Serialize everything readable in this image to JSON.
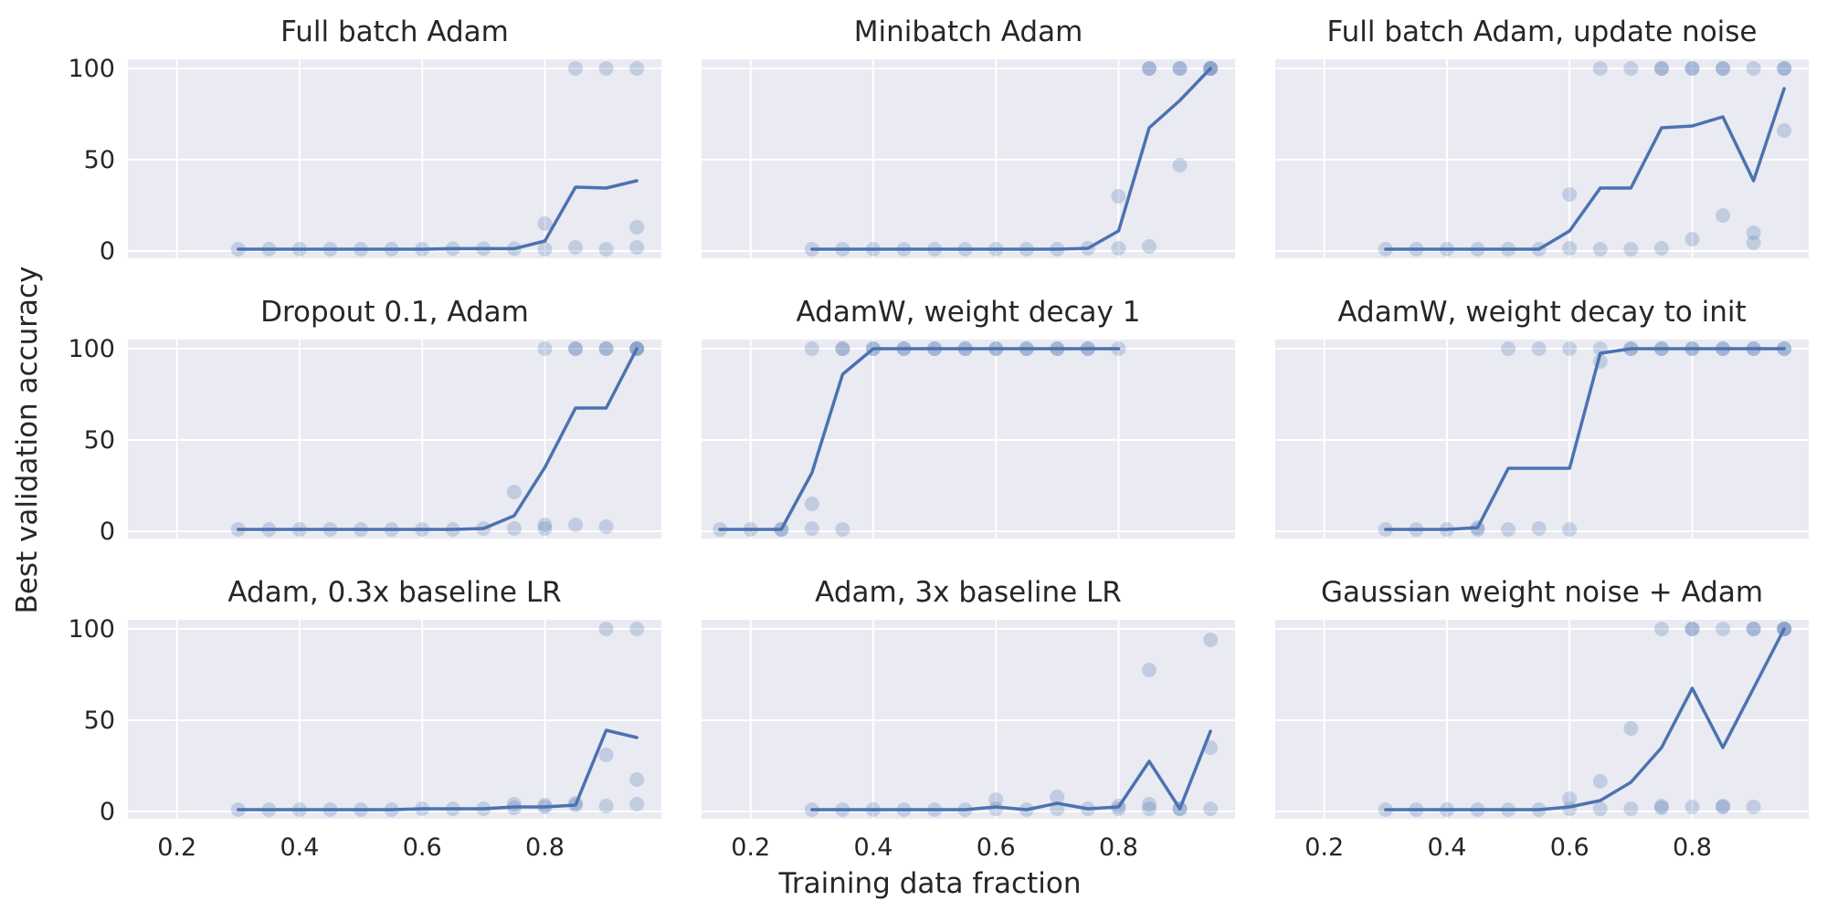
{
  "figure": {
    "xlabel": "Training data fraction",
    "ylabel": "Best validation accuracy",
    "colors": {
      "panel_bg": "#eaeaf2",
      "grid": "#ffffff",
      "series": "#4c72b0",
      "text": "#262626"
    }
  },
  "chart_data": [
    {
      "type": "scatter+line",
      "title": "Full batch Adam",
      "xlim": [
        0.12,
        0.99
      ],
      "ylim": [
        -4,
        105
      ],
      "xticks": [
        0.2,
        0.4,
        0.6,
        0.8
      ],
      "yticks": [
        0,
        50,
        100
      ],
      "show_xticklabels": false,
      "show_yticklabels": true,
      "mean_line": {
        "x": [
          0.3,
          0.35,
          0.4,
          0.45,
          0.5,
          0.55,
          0.6,
          0.65,
          0.7,
          0.75,
          0.8,
          0.85,
          0.9,
          0.95
        ],
        "y": [
          1,
          1,
          1,
          1,
          1,
          1,
          1,
          1.3,
          1.3,
          1.3,
          5.5,
          35,
          34.5,
          38.5
        ]
      },
      "runs": [
        [
          0.3,
          1
        ],
        [
          0.35,
          1
        ],
        [
          0.4,
          1
        ],
        [
          0.45,
          1
        ],
        [
          0.5,
          1
        ],
        [
          0.55,
          1
        ],
        [
          0.6,
          1
        ],
        [
          0.65,
          1.3
        ],
        [
          0.7,
          1.3
        ],
        [
          0.75,
          1.3
        ],
        [
          0.8,
          1
        ],
        [
          0.8,
          15
        ],
        [
          0.85,
          2
        ],
        [
          0.85,
          100
        ],
        [
          0.9,
          1
        ],
        [
          0.9,
          100
        ],
        [
          0.95,
          2
        ],
        [
          0.95,
          13
        ],
        [
          0.95,
          100
        ]
      ]
    },
    {
      "type": "scatter+line",
      "title": "Minibatch Adam",
      "xlim": [
        0.12,
        0.99
      ],
      "ylim": [
        -4,
        105
      ],
      "xticks": [
        0.2,
        0.4,
        0.6,
        0.8
      ],
      "yticks": [
        0,
        50,
        100
      ],
      "show_xticklabels": false,
      "show_yticklabels": false,
      "mean_line": {
        "x": [
          0.3,
          0.35,
          0.4,
          0.45,
          0.5,
          0.55,
          0.6,
          0.65,
          0.7,
          0.75,
          0.8,
          0.85,
          0.9,
          0.95
        ],
        "y": [
          1,
          1,
          1,
          1,
          1,
          1,
          1,
          1,
          1,
          1.5,
          11,
          67.5,
          82.5,
          100
        ]
      },
      "runs": [
        [
          0.3,
          1
        ],
        [
          0.35,
          1
        ],
        [
          0.4,
          1
        ],
        [
          0.45,
          1
        ],
        [
          0.5,
          1
        ],
        [
          0.55,
          1
        ],
        [
          0.6,
          1
        ],
        [
          0.65,
          1
        ],
        [
          0.7,
          1
        ],
        [
          0.75,
          1.5
        ],
        [
          0.8,
          1.5
        ],
        [
          0.8,
          30
        ],
        [
          0.85,
          2.5
        ],
        [
          0.85,
          100
        ],
        [
          0.85,
          100
        ],
        [
          0.9,
          47
        ],
        [
          0.9,
          100
        ],
        [
          0.9,
          100
        ],
        [
          0.95,
          100
        ],
        [
          0.95,
          100
        ],
        [
          0.95,
          100
        ]
      ]
    },
    {
      "type": "scatter+line",
      "title": "Full batch Adam, update noise",
      "xlim": [
        0.12,
        0.99
      ],
      "ylim": [
        -4,
        105
      ],
      "xticks": [
        0.2,
        0.4,
        0.6,
        0.8
      ],
      "yticks": [
        0,
        50,
        100
      ],
      "show_xticklabels": false,
      "show_yticklabels": false,
      "mean_line": {
        "x": [
          0.3,
          0.35,
          0.4,
          0.45,
          0.5,
          0.55,
          0.6,
          0.65,
          0.7,
          0.75,
          0.8,
          0.85,
          0.9,
          0.95
        ],
        "y": [
          1,
          1,
          1,
          1,
          1,
          1,
          11,
          34.5,
          34.5,
          67.5,
          68.5,
          73.5,
          38.5,
          89
        ]
      },
      "runs": [
        [
          0.3,
          1
        ],
        [
          0.35,
          1
        ],
        [
          0.4,
          1
        ],
        [
          0.45,
          1
        ],
        [
          0.5,
          1
        ],
        [
          0.55,
          1
        ],
        [
          0.6,
          1.5
        ],
        [
          0.6,
          31
        ],
        [
          0.65,
          1
        ],
        [
          0.65,
          100
        ],
        [
          0.7,
          1
        ],
        [
          0.7,
          100
        ],
        [
          0.75,
          1.5
        ],
        [
          0.75,
          100
        ],
        [
          0.75,
          100
        ],
        [
          0.8,
          6.5
        ],
        [
          0.8,
          100
        ],
        [
          0.8,
          100
        ],
        [
          0.85,
          19.5
        ],
        [
          0.85,
          100
        ],
        [
          0.85,
          100
        ],
        [
          0.9,
          4.5
        ],
        [
          0.9,
          10
        ],
        [
          0.9,
          100
        ],
        [
          0.95,
          66
        ],
        [
          0.95,
          100
        ],
        [
          0.95,
          100
        ]
      ]
    },
    {
      "type": "scatter+line",
      "title": "Dropout 0.1, Adam",
      "xlim": [
        0.12,
        0.99
      ],
      "ylim": [
        -4,
        105
      ],
      "xticks": [
        0.2,
        0.4,
        0.6,
        0.8
      ],
      "yticks": [
        0,
        50,
        100
      ],
      "show_xticklabels": false,
      "show_yticklabels": true,
      "mean_line": {
        "x": [
          0.3,
          0.35,
          0.4,
          0.45,
          0.5,
          0.55,
          0.6,
          0.65,
          0.7,
          0.75,
          0.8,
          0.85,
          0.9,
          0.95
        ],
        "y": [
          1,
          1,
          1,
          1,
          1,
          1,
          1,
          1,
          1.5,
          8.5,
          35,
          67.5,
          67.5,
          100
        ]
      },
      "runs": [
        [
          0.3,
          1
        ],
        [
          0.35,
          1
        ],
        [
          0.4,
          1
        ],
        [
          0.45,
          1
        ],
        [
          0.5,
          1
        ],
        [
          0.55,
          1
        ],
        [
          0.6,
          1
        ],
        [
          0.65,
          1
        ],
        [
          0.7,
          1.5
        ],
        [
          0.75,
          1.5
        ],
        [
          0.75,
          21.5
        ],
        [
          0.8,
          1.5
        ],
        [
          0.8,
          3.5
        ],
        [
          0.8,
          100
        ],
        [
          0.85,
          3.5
        ],
        [
          0.85,
          100
        ],
        [
          0.85,
          100
        ],
        [
          0.9,
          2.5
        ],
        [
          0.9,
          100
        ],
        [
          0.9,
          100
        ],
        [
          0.95,
          100
        ],
        [
          0.95,
          100
        ],
        [
          0.95,
          100
        ]
      ]
    },
    {
      "type": "scatter+line",
      "title": "AdamW, weight decay 1",
      "xlim": [
        0.12,
        0.99
      ],
      "ylim": [
        -4,
        105
      ],
      "xticks": [
        0.2,
        0.4,
        0.6,
        0.8
      ],
      "yticks": [
        0,
        50,
        100
      ],
      "show_xticklabels": false,
      "show_yticklabels": false,
      "mean_line": {
        "x": [
          0.15,
          0.2,
          0.25,
          0.3,
          0.35,
          0.4,
          0.45,
          0.5,
          0.55,
          0.6,
          0.65,
          0.7,
          0.75,
          0.8
        ],
        "y": [
          1,
          1,
          1,
          32,
          86,
          100,
          100,
          100,
          100,
          100,
          100,
          100,
          100,
          100
        ]
      },
      "runs": [
        [
          0.15,
          1
        ],
        [
          0.2,
          1
        ],
        [
          0.25,
          1
        ],
        [
          0.25,
          1
        ],
        [
          0.3,
          1.5
        ],
        [
          0.3,
          15
        ],
        [
          0.3,
          100
        ],
        [
          0.35,
          1
        ],
        [
          0.35,
          100
        ],
        [
          0.35,
          100
        ],
        [
          0.4,
          100
        ],
        [
          0.4,
          100
        ],
        [
          0.45,
          100
        ],
        [
          0.45,
          100
        ],
        [
          0.5,
          100
        ],
        [
          0.5,
          100
        ],
        [
          0.55,
          100
        ],
        [
          0.55,
          100
        ],
        [
          0.6,
          100
        ],
        [
          0.6,
          100
        ],
        [
          0.65,
          100
        ],
        [
          0.65,
          100
        ],
        [
          0.7,
          100
        ],
        [
          0.7,
          100
        ],
        [
          0.75,
          100
        ],
        [
          0.75,
          100
        ],
        [
          0.8,
          100
        ]
      ]
    },
    {
      "type": "scatter+line",
      "title": "AdamW, weight decay to init",
      "xlim": [
        0.12,
        0.99
      ],
      "ylim": [
        -4,
        105
      ],
      "xticks": [
        0.2,
        0.4,
        0.6,
        0.8
      ],
      "yticks": [
        0,
        50,
        100
      ],
      "show_xticklabels": false,
      "show_yticklabels": false,
      "mean_line": {
        "x": [
          0.3,
          0.35,
          0.4,
          0.45,
          0.5,
          0.55,
          0.6,
          0.65,
          0.7,
          0.75,
          0.8,
          0.85,
          0.9,
          0.95
        ],
        "y": [
          1,
          1,
          1,
          2,
          34.5,
          34.5,
          34.5,
          97.5,
          100,
          100,
          100,
          100,
          100,
          100
        ]
      },
      "runs": [
        [
          0.3,
          1
        ],
        [
          0.35,
          1
        ],
        [
          0.4,
          1
        ],
        [
          0.45,
          1
        ],
        [
          0.45,
          2
        ],
        [
          0.5,
          1
        ],
        [
          0.5,
          100
        ],
        [
          0.55,
          1.5
        ],
        [
          0.55,
          100
        ],
        [
          0.6,
          1
        ],
        [
          0.6,
          100
        ],
        [
          0.65,
          93
        ],
        [
          0.65,
          100
        ],
        [
          0.7,
          100
        ],
        [
          0.7,
          100
        ],
        [
          0.75,
          100
        ],
        [
          0.75,
          100
        ],
        [
          0.8,
          100
        ],
        [
          0.8,
          100
        ],
        [
          0.85,
          100
        ],
        [
          0.85,
          100
        ],
        [
          0.9,
          100
        ],
        [
          0.9,
          100
        ],
        [
          0.95,
          100
        ],
        [
          0.95,
          100
        ]
      ]
    },
    {
      "type": "scatter+line",
      "title": "Adam, 0.3x baseline LR",
      "xlim": [
        0.12,
        0.99
      ],
      "ylim": [
        -4,
        105
      ],
      "xticks": [
        0.2,
        0.4,
        0.6,
        0.8
      ],
      "yticks": [
        0,
        50,
        100
      ],
      "show_xticklabels": true,
      "show_yticklabels": true,
      "mean_line": {
        "x": [
          0.3,
          0.35,
          0.4,
          0.45,
          0.5,
          0.55,
          0.6,
          0.65,
          0.7,
          0.75,
          0.8,
          0.85,
          0.9,
          0.95
        ],
        "y": [
          1,
          1,
          1,
          1,
          1,
          1,
          1.5,
          1.5,
          1.5,
          2.5,
          2.5,
          3.5,
          44.5,
          40.5
        ]
      },
      "runs": [
        [
          0.3,
          1
        ],
        [
          0.35,
          1
        ],
        [
          0.4,
          1
        ],
        [
          0.45,
          1
        ],
        [
          0.5,
          1
        ],
        [
          0.55,
          1
        ],
        [
          0.6,
          1.5
        ],
        [
          0.65,
          1.5
        ],
        [
          0.7,
          1.5
        ],
        [
          0.75,
          2
        ],
        [
          0.75,
          4
        ],
        [
          0.8,
          2.5
        ],
        [
          0.8,
          3.5
        ],
        [
          0.85,
          3.5
        ],
        [
          0.85,
          4.5
        ],
        [
          0.9,
          3
        ],
        [
          0.9,
          31
        ],
        [
          0.9,
          100
        ],
        [
          0.95,
          4
        ],
        [
          0.95,
          17.5
        ],
        [
          0.95,
          100
        ]
      ]
    },
    {
      "type": "scatter+line",
      "title": "Adam, 3x baseline LR",
      "xlim": [
        0.12,
        0.99
      ],
      "ylim": [
        -4,
        105
      ],
      "xticks": [
        0.2,
        0.4,
        0.6,
        0.8
      ],
      "yticks": [
        0,
        50,
        100
      ],
      "show_xticklabels": true,
      "show_yticklabels": false,
      "mean_line": {
        "x": [
          0.3,
          0.35,
          0.4,
          0.45,
          0.5,
          0.55,
          0.6,
          0.65,
          0.7,
          0.75,
          0.8,
          0.85,
          0.9,
          0.95
        ],
        "y": [
          1,
          1,
          1,
          1,
          1,
          1,
          2.5,
          1,
          4.5,
          1.5,
          2.5,
          27.5,
          1.5,
          44
        ]
      },
      "runs": [
        [
          0.3,
          1
        ],
        [
          0.35,
          1
        ],
        [
          0.4,
          1
        ],
        [
          0.45,
          1
        ],
        [
          0.5,
          1
        ],
        [
          0.55,
          1
        ],
        [
          0.6,
          1.5
        ],
        [
          0.6,
          6.5
        ],
        [
          0.65,
          1
        ],
        [
          0.7,
          1.5
        ],
        [
          0.7,
          8
        ],
        [
          0.75,
          1.5
        ],
        [
          0.8,
          1.5
        ],
        [
          0.8,
          3
        ],
        [
          0.85,
          1.5
        ],
        [
          0.85,
          4
        ],
        [
          0.85,
          77.5
        ],
        [
          0.9,
          1.5
        ],
        [
          0.9,
          1.5
        ],
        [
          0.95,
          1.5
        ],
        [
          0.95,
          35
        ],
        [
          0.95,
          94
        ]
      ]
    },
    {
      "type": "scatter+line",
      "title": "Gaussian weight noise + Adam",
      "xlim": [
        0.12,
        0.99
      ],
      "ylim": [
        -4,
        105
      ],
      "xticks": [
        0.2,
        0.4,
        0.6,
        0.8
      ],
      "yticks": [
        0,
        50,
        100
      ],
      "show_xticklabels": true,
      "show_yticklabels": false,
      "mean_line": {
        "x": [
          0.3,
          0.35,
          0.4,
          0.45,
          0.5,
          0.55,
          0.6,
          0.65,
          0.7,
          0.75,
          0.8,
          0.85,
          0.9,
          0.95
        ],
        "y": [
          1,
          1,
          1,
          1,
          1,
          1,
          2.5,
          6,
          16,
          35,
          67.5,
          35,
          67.5,
          100
        ]
      },
      "runs": [
        [
          0.3,
          1
        ],
        [
          0.35,
          1
        ],
        [
          0.4,
          1
        ],
        [
          0.45,
          1
        ],
        [
          0.5,
          1
        ],
        [
          0.55,
          1
        ],
        [
          0.6,
          1.5
        ],
        [
          0.6,
          7
        ],
        [
          0.65,
          1.5
        ],
        [
          0.65,
          16.5
        ],
        [
          0.7,
          1.5
        ],
        [
          0.7,
          45.5
        ],
        [
          0.75,
          2
        ],
        [
          0.75,
          3
        ],
        [
          0.75,
          100
        ],
        [
          0.8,
          2.5
        ],
        [
          0.8,
          100
        ],
        [
          0.8,
          100
        ],
        [
          0.85,
          2.5
        ],
        [
          0.85,
          3
        ],
        [
          0.85,
          100
        ],
        [
          0.9,
          2.5
        ],
        [
          0.9,
          100
        ],
        [
          0.9,
          100
        ],
        [
          0.95,
          100
        ],
        [
          0.95,
          100
        ],
        [
          0.95,
          100
        ]
      ]
    }
  ]
}
